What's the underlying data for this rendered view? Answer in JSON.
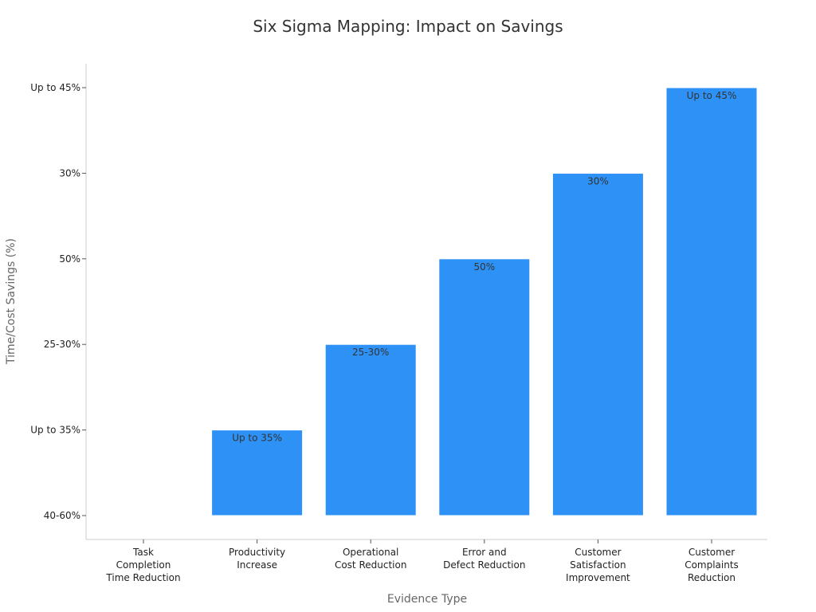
{
  "chart_data": {
    "type": "bar",
    "title": "Six Sigma Mapping: Impact on Savings",
    "xlabel": "Evidence Type",
    "ylabel": "Time/Cost Savings (%)",
    "y_categories": [
      "40-60%",
      "Up to 35%",
      "25-30%",
      "50%",
      "30%",
      "Up to 45%"
    ],
    "categories": [
      [
        "Task",
        "Completion",
        "Time Reduction"
      ],
      [
        "Productivity",
        "Increase"
      ],
      [
        "Operational",
        "Cost Reduction"
      ],
      [
        "Error and",
        "Defect Reduction"
      ],
      [
        "Customer",
        "Satisfaction",
        "Improvement"
      ],
      [
        "Customer",
        "Complaints",
        "Reduction"
      ]
    ],
    "values": [
      "40-60%",
      "Up to 35%",
      "25-30%",
      "50%",
      "30%",
      "Up to 45%"
    ],
    "data_labels": [
      "",
      "Up to 35%",
      "25-30%",
      "50%",
      "30%",
      "Up to 45%"
    ],
    "bar_color": "#2e91f5",
    "grid": false,
    "legend": "none"
  }
}
